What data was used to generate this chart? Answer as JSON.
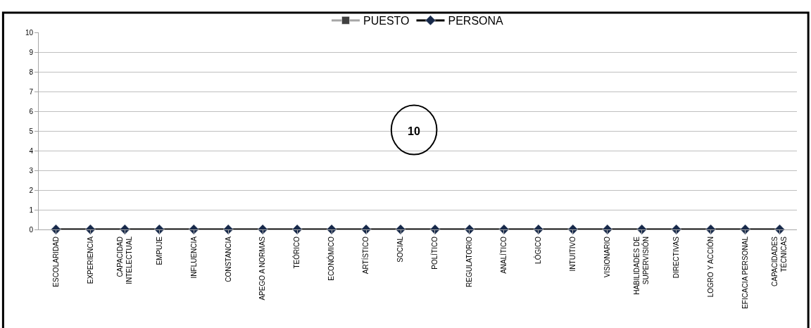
{
  "chart_data": {
    "type": "line",
    "categories": [
      "ESCOLARIDAD",
      "EXPERIENCIA",
      "CAPACIDAD\nINTELECTUAL",
      "EMPUJE",
      "INFLUENCIA",
      "CONSTANCIA",
      "APEGO A NORMAS",
      "TEÓRICO",
      "ECONÓMICO",
      "ARTÍSTICO",
      "SOCIAL",
      "POLÍTICO",
      "REGULATORIO",
      "ANALÍTICO",
      "LÓGICO",
      "INTUITIVO",
      "VISIONARIO",
      "HABILIDADES DE\nSUPERVISIÓN",
      "DIRECTIVAS",
      "LOGRO Y ACCIÓN",
      "EFICACIA PERSONAL",
      "CAPACIDADES\nTÉCNICAS"
    ],
    "series": [
      {
        "name": "PUESTO",
        "color": "#a6a6a6",
        "marker": "square",
        "values": [
          null,
          null,
          null,
          null,
          null,
          null,
          null,
          null,
          null,
          null,
          null,
          null,
          null,
          null,
          null,
          null,
          null,
          null,
          null,
          null,
          null,
          null
        ]
      },
      {
        "name": "PERSONA",
        "color": "#000000",
        "marker": "diamond",
        "values": [
          0,
          0,
          0,
          0,
          0,
          0,
          0,
          0,
          0,
          0,
          0,
          0,
          0,
          0,
          0,
          0,
          0,
          0,
          0,
          0,
          0,
          0
        ]
      }
    ],
    "ylim": [
      0,
      10
    ],
    "yticks": [
      0,
      1,
      2,
      3,
      4,
      5,
      6,
      7,
      8,
      9,
      10
    ],
    "grid": "y",
    "legend": "top",
    "annotations": [
      "10"
    ]
  }
}
